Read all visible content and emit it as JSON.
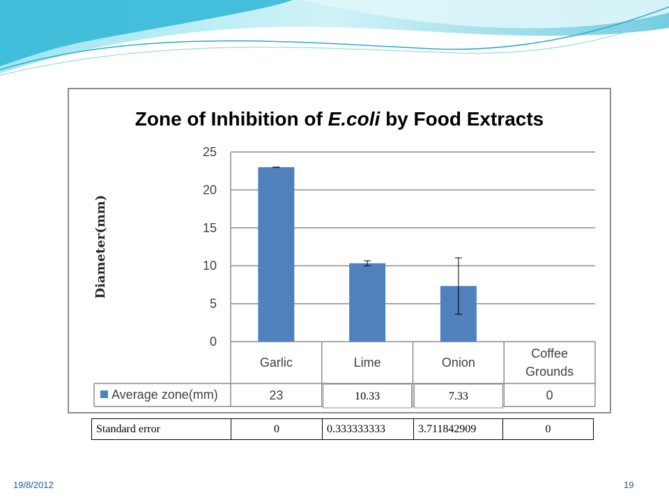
{
  "slide": {
    "date": "19/8/2012",
    "page_number": "19"
  },
  "colors": {
    "bar": "#4f81bd",
    "wave_light": "#bfeaf2",
    "wave_mid": "#7fd3e6",
    "wave_dark": "#3bb3d1"
  },
  "chart_data": {
    "type": "bar",
    "title_prefix": "Zone of Inhibition of ",
    "title_italic": "E.coli",
    "title_suffix": " by Food Extracts",
    "ylabel": "Diameter(mm)",
    "xlabel": "",
    "ylim": [
      0,
      25
    ],
    "yticks": [
      "0",
      "5",
      "10",
      "15",
      "20",
      "25"
    ],
    "grid": true,
    "categories": [
      "Garlic",
      "Lime",
      "Onion",
      "Coffee Grounds"
    ],
    "series": [
      {
        "name": "Average zone(mm)",
        "values": [
          23,
          10.33,
          7.33,
          0
        ],
        "value_labels": [
          "23",
          "10.33",
          "7.33",
          "0"
        ],
        "error": [
          0,
          0.333333333,
          3.711842909,
          0
        ]
      }
    ],
    "legend": "data-table"
  },
  "se_table": {
    "label": "Standard error",
    "values": [
      "0",
      "0.333333333",
      "3.711842909",
      "0"
    ]
  }
}
